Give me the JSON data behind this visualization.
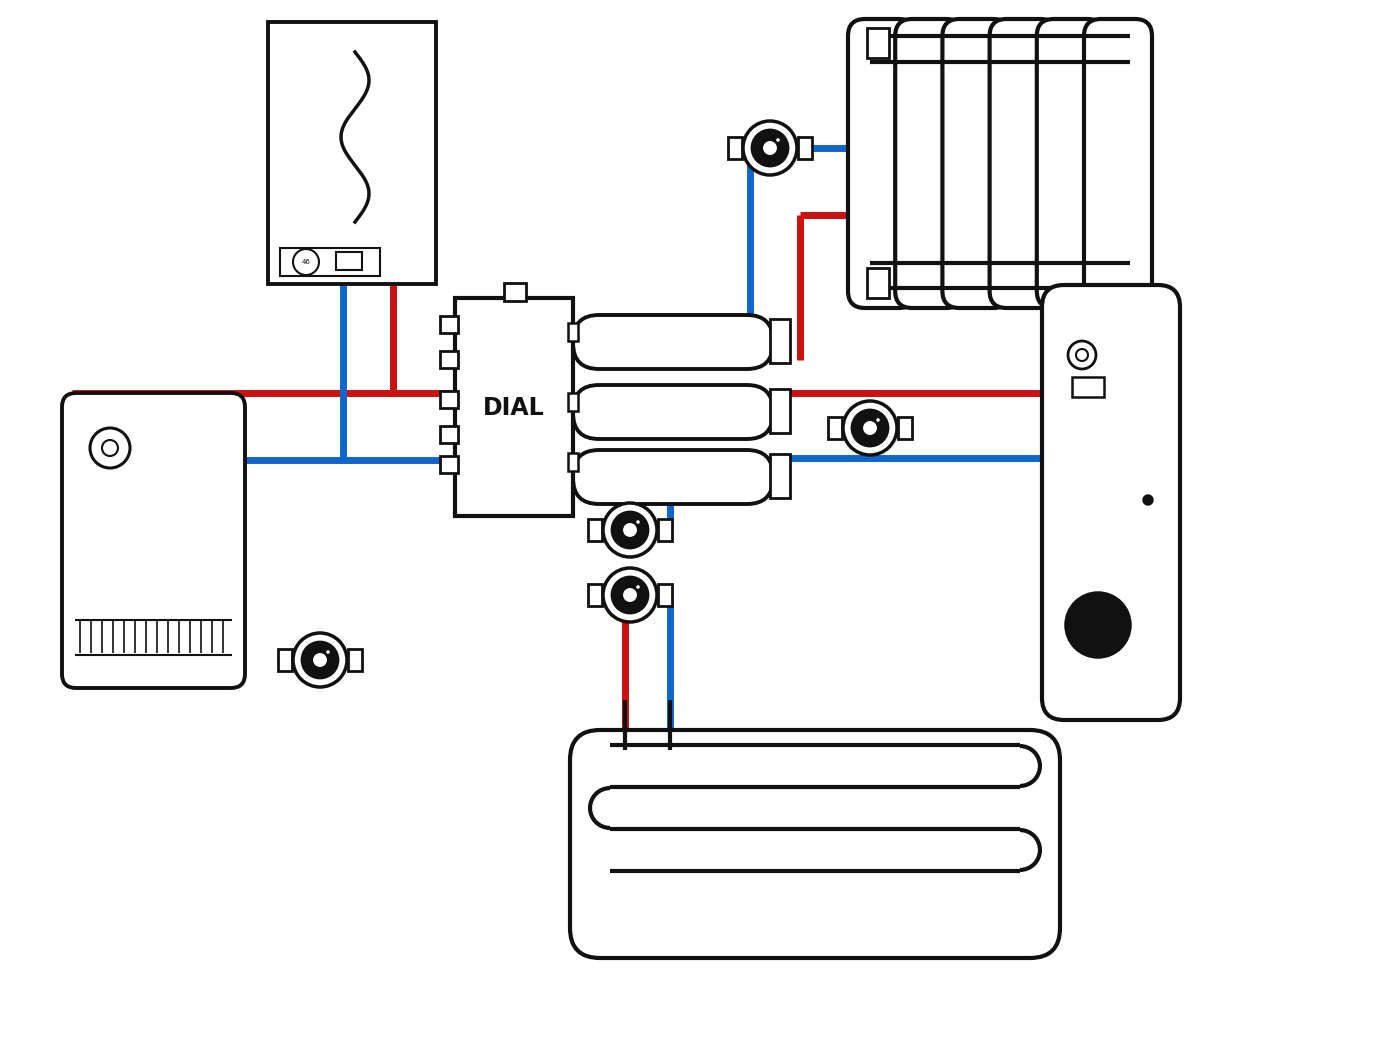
{
  "bg_color": "#ffffff",
  "red_color": "#cc1111",
  "blue_color": "#1166cc",
  "black_color": "#111111",
  "pipe_lw": 5,
  "border_lw": 2.8,
  "dial_text": "DIAL",
  "fig_width": 13.93,
  "fig_height": 10.45
}
